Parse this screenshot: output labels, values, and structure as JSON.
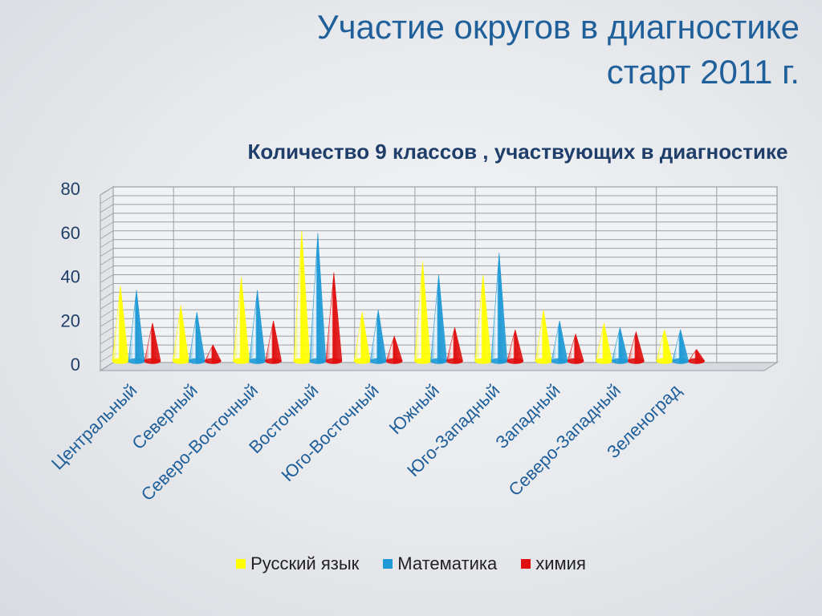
{
  "slide": {
    "title_line1": "Участие  округов в диагностике",
    "title_line2": "старт 2011 г."
  },
  "chart_data": {
    "type": "bar",
    "title": "Количество 9  классов , участвующих в диагностике",
    "categories": [
      "Центральный",
      "Северный",
      "Северо-Восточный",
      "Восточный",
      "Юго-Восточный",
      "Южный",
      "Юго-Западный",
      "Западный",
      "Северо-Западный",
      "Зеленоград"
    ],
    "series": [
      {
        "name": "Русский язык",
        "color": "#ffff00",
        "values": [
          35,
          26,
          39,
          60,
          23,
          46,
          40,
          24,
          18,
          15
        ]
      },
      {
        "name": "Математика",
        "color": "#1f9ad6",
        "values": [
          33,
          23,
          33,
          59,
          24,
          40,
          50,
          19,
          16,
          15
        ]
      },
      {
        "name": "химия",
        "color": "#e01010",
        "values": [
          18,
          8,
          19,
          41,
          12,
          16,
          15,
          13,
          14,
          6
        ]
      }
    ],
    "y_ticks": [
      "0",
      "20",
      "40",
      "60",
      "80"
    ],
    "ylim": [
      0,
      80
    ],
    "grid": true,
    "legend_position": "bottom",
    "mark_shape": "cone"
  }
}
